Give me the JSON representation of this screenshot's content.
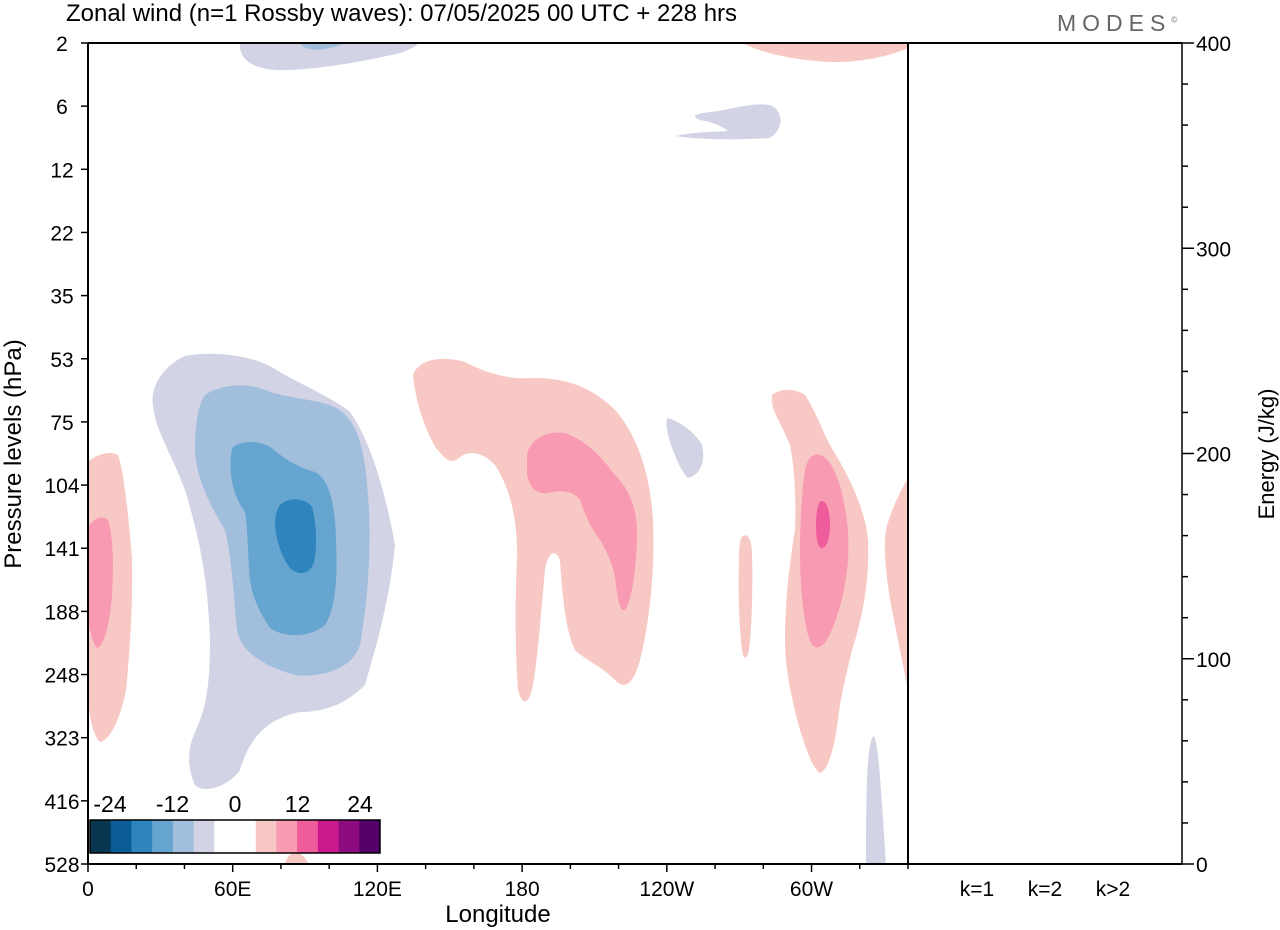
{
  "header": {
    "title": "Zonal wind (n=1 Rossby waves):  07/05/2025  00 UTC  + 228 hrs",
    "brand": "MODES"
  },
  "chart_data": [
    {
      "type": "heatmap",
      "title": "Zonal wind (n=1 Rossby waves):  07/05/2025  00 UTC  + 228 hrs",
      "xlabel": "Longitude",
      "ylabel": "Pressure levels (hPa)",
      "x_ticks": [
        "0",
        "60E",
        "120E",
        "180",
        "120W",
        "60W"
      ],
      "x_tick_degrees": [
        0,
        60,
        120,
        180,
        240,
        300
      ],
      "xlim": [
        0,
        340
      ],
      "y_ticks": [
        "2",
        "6",
        "12",
        "22",
        "35",
        "53",
        "75",
        "104",
        "141",
        "188",
        "248",
        "323",
        "416",
        "528"
      ],
      "colorbar": {
        "tick_labels": [
          "-24",
          "-12",
          "0",
          "12",
          "24"
        ],
        "colors": [
          "#08354f",
          "#0b5e95",
          "#2e85bd",
          "#65a5d0",
          "#a2bedd",
          "#d2d4e6",
          "#ffffff",
          "#ffffff",
          "#f8c9c4",
          "#f89ab2",
          "#ef5c9b",
          "#c9198d",
          "#8d0b7f",
          "#550069"
        ]
      },
      "features": [
        {
          "sign": "negative",
          "lon_range": [
            48,
            128
          ],
          "pressure_range": [
            53,
            416
          ],
          "min_value": -15
        },
        {
          "sign": "negative",
          "lon_range": [
            38,
            72
          ],
          "pressure_range": [
            2,
            2
          ],
          "min_value": -9
        },
        {
          "sign": "negative",
          "lon_range": [
            243,
            290
          ],
          "pressure_range": [
            6,
            9
          ],
          "min_value": -3
        },
        {
          "sign": "negative",
          "lon_range": [
            253,
            263
          ],
          "pressure_range": [
            75,
            104
          ],
          "min_value": -3
        },
        {
          "sign": "negative",
          "lon_range": [
            317,
            328
          ],
          "pressure_range": [
            323,
            528
          ],
          "min_value": -3
        },
        {
          "sign": "positive",
          "lon_range": [
            0,
            14
          ],
          "pressure_range": [
            104,
            323
          ],
          "max_value": 9
        },
        {
          "sign": "positive",
          "lon_range": [
            138,
            240
          ],
          "pressure_range": [
            53,
            248
          ],
          "max_value": 9
        },
        {
          "sign": "positive",
          "lon_range": [
            287,
            330
          ],
          "pressure_range": [
            53,
            416
          ],
          "max_value": 15
        },
        {
          "sign": "positive",
          "lon_range": [
            295,
            325
          ],
          "pressure_range": [
            2,
            2
          ],
          "max_value": 3
        },
        {
          "sign": "positive",
          "lon_range": [
            284,
            289
          ],
          "pressure_range": [
            141,
            248
          ],
          "max_value": 3
        },
        {
          "sign": "positive",
          "lon_range": [
            330,
            340
          ],
          "pressure_range": [
            104,
            248
          ],
          "max_value": 3
        },
        {
          "sign": "positive",
          "lon_range": [
            84,
            92
          ],
          "pressure_range": [
            500,
            528
          ],
          "max_value": 3
        }
      ]
    },
    {
      "type": "bar",
      "categories": [
        "k=1",
        "k=2",
        "k>2"
      ],
      "values": [
        0.3,
        0.3,
        0.3
      ],
      "ylabel": "Energy (J/kg)",
      "ylim": [
        0,
        400
      ],
      "y_ticks": [
        "0",
        "100",
        "200",
        "300",
        "400"
      ]
    }
  ]
}
